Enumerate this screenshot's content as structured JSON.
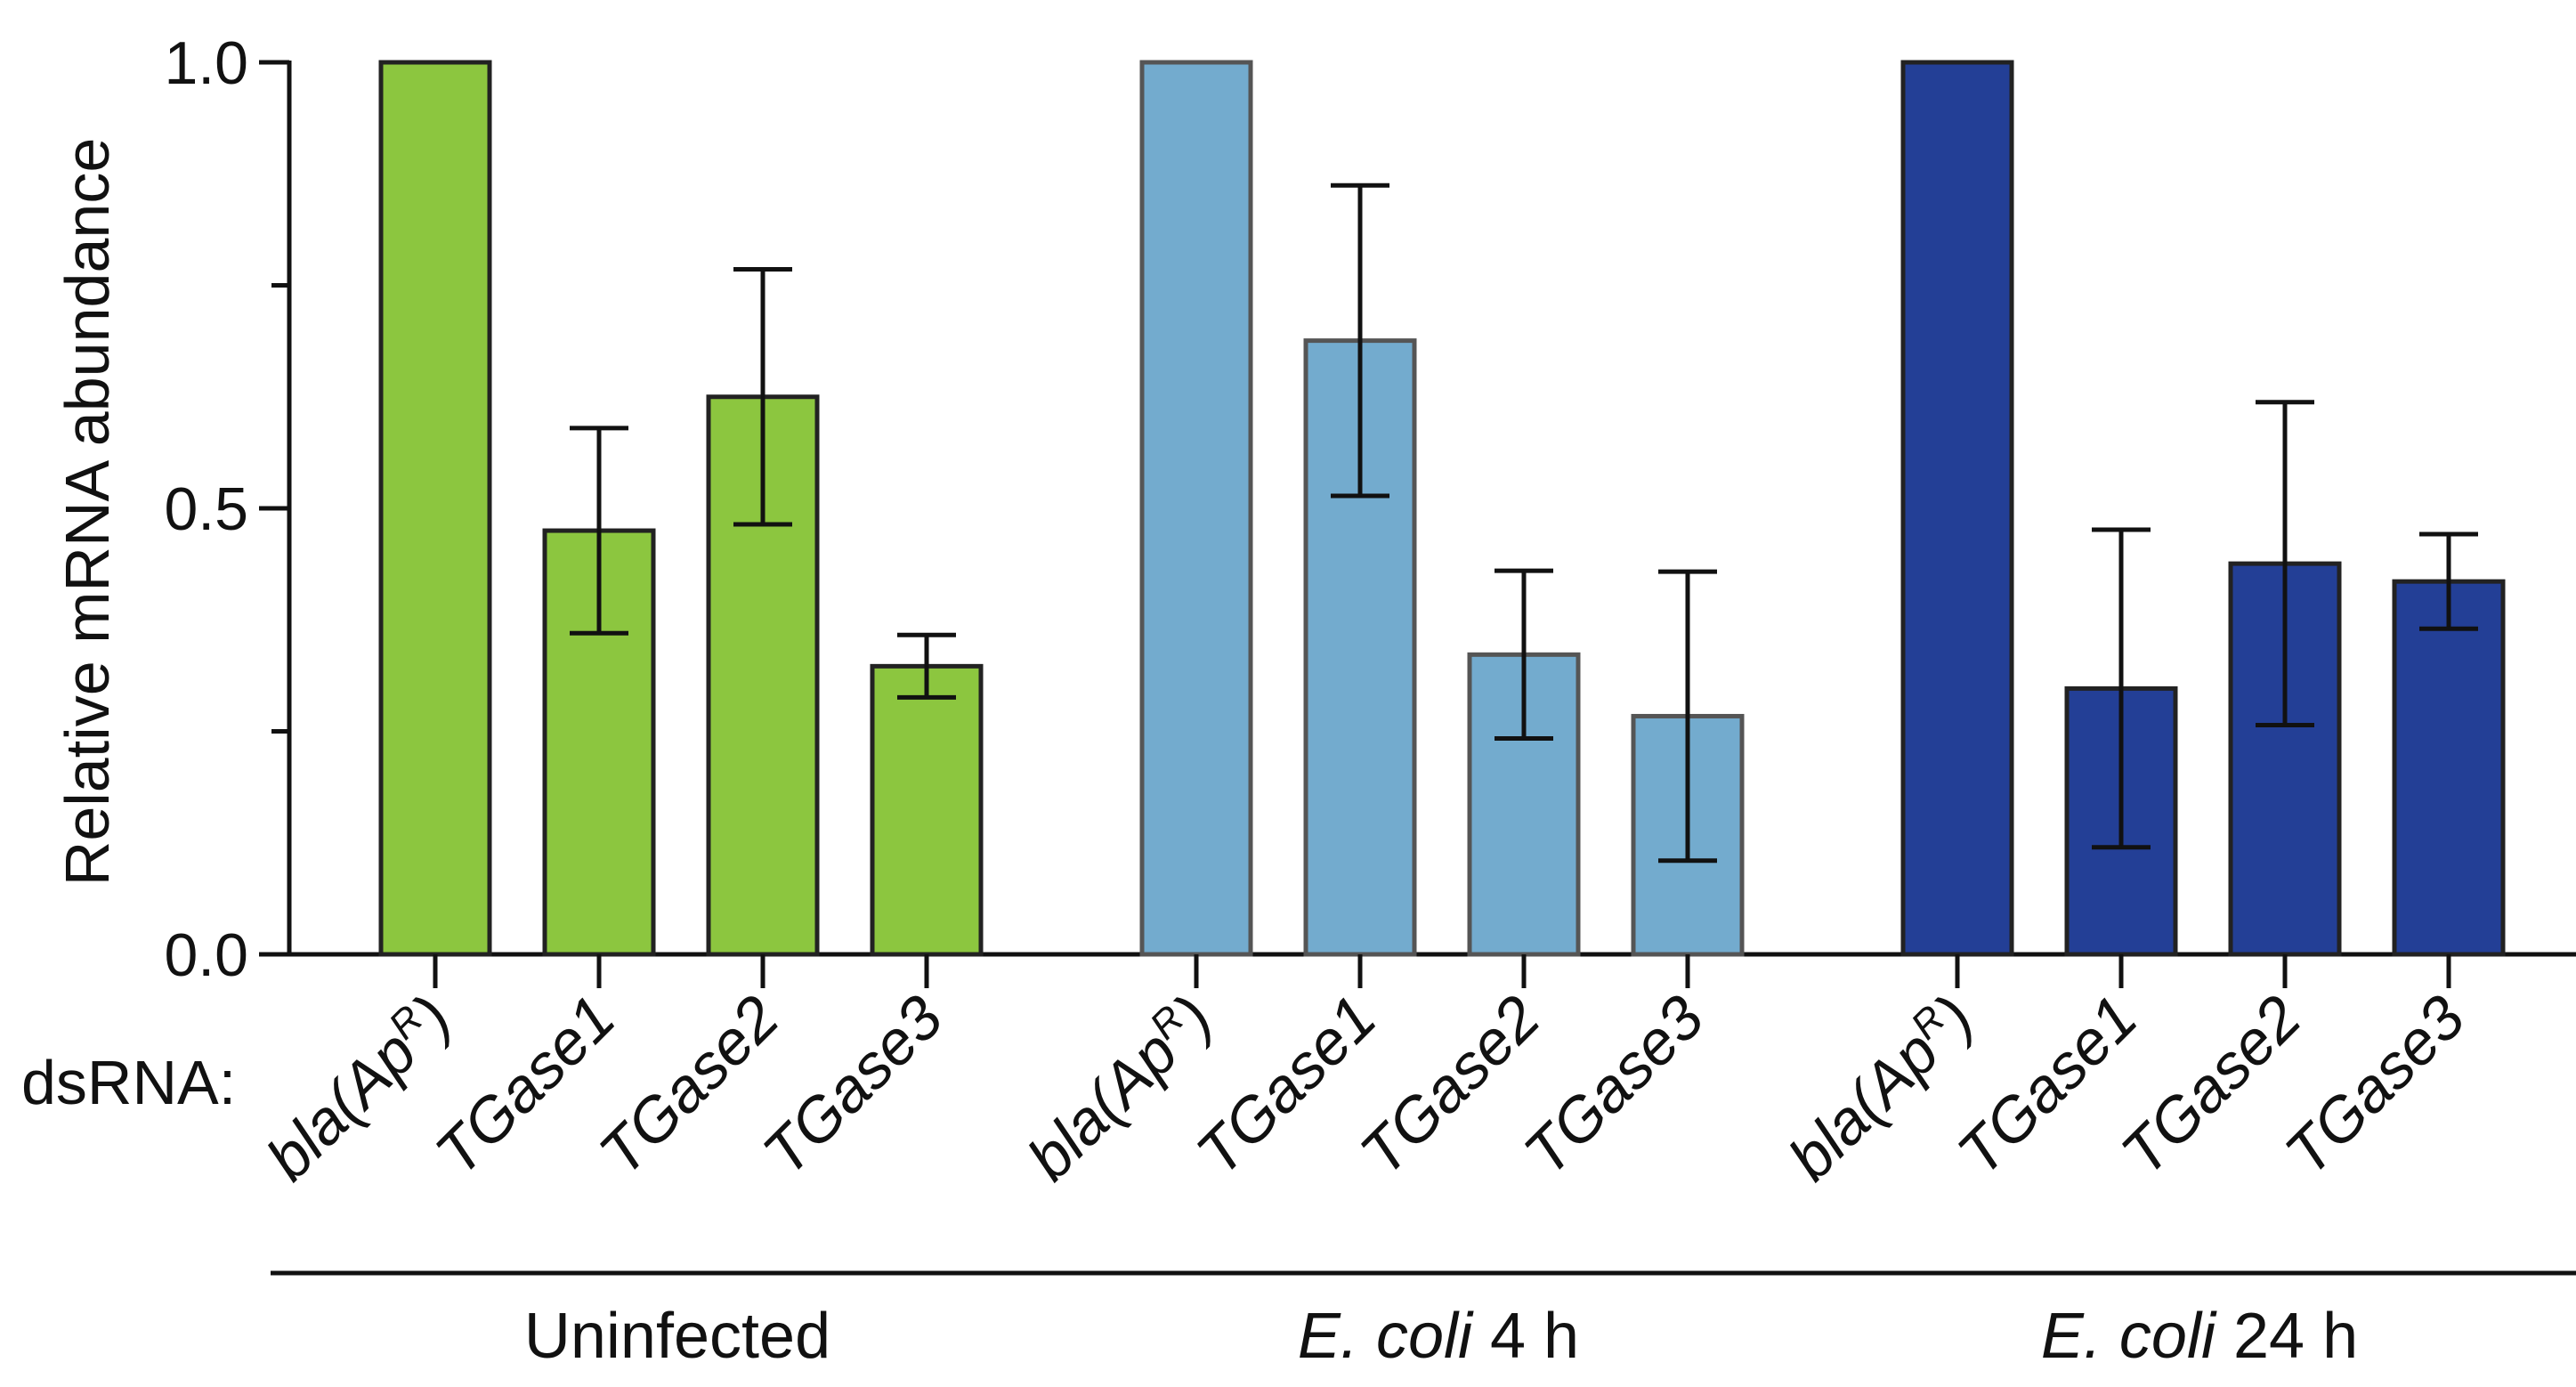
{
  "chart_data": {
    "type": "bar",
    "ylabel": "Relative mRNA abundance",
    "ylim": [
      0,
      1.0
    ],
    "yticks": [
      {
        "value": 0.0,
        "label": "0.0",
        "labeled": true
      },
      {
        "value": 0.25,
        "label": "",
        "labeled": false
      },
      {
        "value": 0.5,
        "label": "0.5",
        "labeled": true
      },
      {
        "value": 0.75,
        "label": "",
        "labeled": false
      },
      {
        "value": 1.0,
        "label": "1.0",
        "labeled": true
      }
    ],
    "category_prefix": "dsRNA:",
    "groups": [
      {
        "name_italic": "",
        "name_plain": "Uninfected",
        "fill": "#8CC63F",
        "stroke": "#222222",
        "bars": [
          {
            "label": "bla(Ap",
            "sup": "R",
            "label_close": ")",
            "value": 1.0,
            "error": null
          },
          {
            "label": "TGase1",
            "sup": "",
            "label_close": "",
            "value": 0.475,
            "error": 0.115
          },
          {
            "label": "TGase2",
            "sup": "",
            "label_close": "",
            "value": 0.625,
            "error": 0.143
          },
          {
            "label": "TGase3",
            "sup": "",
            "label_close": "",
            "value": 0.323,
            "error": 0.035
          }
        ]
      },
      {
        "name_italic": "E. coli",
        "name_plain": " 4 h",
        "fill": "#73ABCE",
        "stroke": "#555555",
        "bars": [
          {
            "label": "bla(Ap",
            "sup": "R",
            "label_close": ")",
            "value": 1.0,
            "error": null
          },
          {
            "label": "TGase1",
            "sup": "",
            "label_close": "",
            "value": 0.688,
            "error": 0.174
          },
          {
            "label": "TGase2",
            "sup": "",
            "label_close": "",
            "value": 0.336,
            "error": 0.094
          },
          {
            "label": "TGase3",
            "sup": "",
            "label_close": "",
            "value": 0.267,
            "error": 0.162
          }
        ]
      },
      {
        "name_italic": "E. coli",
        "name_plain": " 24 h",
        "fill": "#233F96",
        "stroke": "#222222",
        "bars": [
          {
            "label": "bla(Ap",
            "sup": "R",
            "label_close": ")",
            "value": 1.0,
            "error": null
          },
          {
            "label": "TGase1",
            "sup": "",
            "label_close": "",
            "value": 0.298,
            "error": 0.178
          },
          {
            "label": "TGase2",
            "sup": "",
            "label_close": "",
            "value": 0.438,
            "error": 0.181
          },
          {
            "label": "TGase3",
            "sup": "",
            "label_close": "",
            "value": 0.418,
            "error": 0.053
          }
        ]
      }
    ]
  }
}
